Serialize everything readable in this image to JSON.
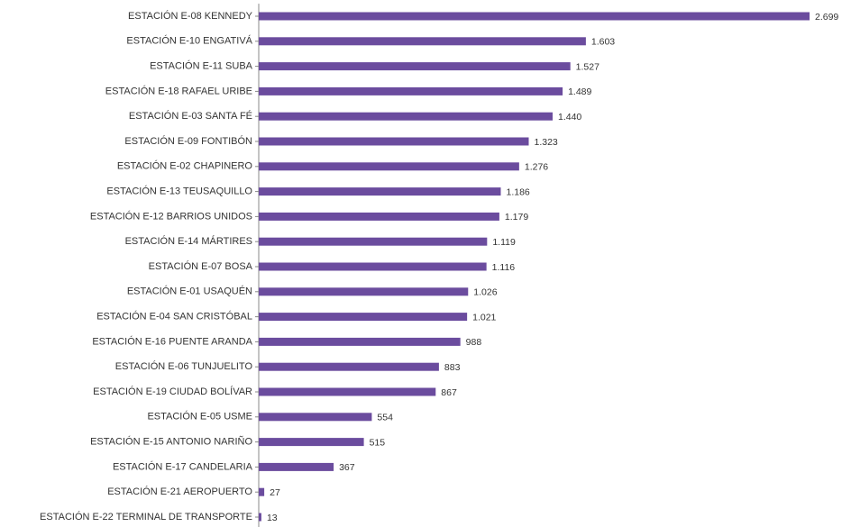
{
  "chart_data": {
    "type": "bar",
    "orientation": "horizontal",
    "color": "#6b4c9e",
    "categories": [
      "ESTACIÓN E-08 KENNEDY",
      "ESTACIÓN E-10 ENGATIVÁ",
      "ESTACIÓN E-11 SUBA",
      "ESTACIÓN E-18 RAFAEL URIBE",
      "ESTACIÓN E-03 SANTA FÉ",
      "ESTACIÓN E-09 FONTIBÓN",
      "ESTACIÓN E-02 CHAPINERO",
      "ESTACIÓN E-13 TEUSAQUILLO",
      "ESTACIÓN E-12 BARRIOS UNIDOS",
      "ESTACIÓN E-14 MÁRTIRES",
      "ESTACIÓN E-07 BOSA",
      "ESTACIÓN E-01 USAQUÉN",
      "ESTACIÓN E-04  SAN CRISTÓBAL",
      "ESTACIÓN E-16 PUENTE ARANDA",
      "ESTACIÓN E-06 TUNJUELITO",
      "ESTACIÓN E-19 CIUDAD BOLÍVAR",
      "ESTACIÓN E-05 USME",
      "ESTACIÓN E-15 ANTONIO NARIÑO",
      "ESTACIÓN E-17 CANDELARIA",
      "ESTACIÓN E-21 AEROPUERTO",
      "ESTACIÓN E-22 TERMINAL DE TRANSPORTE"
    ],
    "values": [
      2699,
      1603,
      1527,
      1489,
      1440,
      1323,
      1276,
      1186,
      1179,
      1119,
      1116,
      1026,
      1021,
      988,
      883,
      867,
      554,
      515,
      367,
      27,
      13
    ],
    "value_labels": [
      "2.699",
      "1.603",
      "1.527",
      "1.489",
      "1.440",
      "1.323",
      "1.276",
      "1.186",
      "1.179",
      "1.119",
      "1.116",
      "1.026",
      "1.021",
      "988",
      "883",
      "867",
      "554",
      "515",
      "367",
      "27",
      "13"
    ]
  }
}
